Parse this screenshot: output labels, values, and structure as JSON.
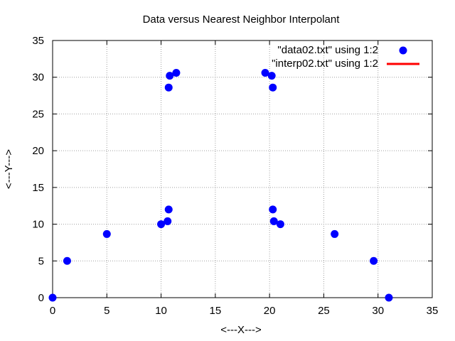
{
  "chart_data": {
    "type": "scatter",
    "title": "Data versus Nearest Neighbor Interpolant",
    "xlabel": "<---X--->",
    "ylabel": "<---Y--->",
    "xlim": [
      0,
      35
    ],
    "ylim": [
      0,
      35
    ],
    "xticks": [
      0,
      5,
      10,
      15,
      20,
      25,
      30,
      35
    ],
    "yticks": [
      0,
      5,
      10,
      15,
      20,
      25,
      30,
      35
    ],
    "grid": true,
    "legend_position": "top-right",
    "series": [
      {
        "name": "\"data02.txt\" using 1:2",
        "style": "points",
        "color": "#0000ff",
        "points": [
          [
            0,
            0
          ],
          [
            1.34,
            5
          ],
          [
            5,
            8.66
          ],
          [
            10,
            10
          ],
          [
            10.6,
            10.4
          ],
          [
            10.7,
            12
          ],
          [
            10.7,
            28.6
          ],
          [
            10.8,
            30.2
          ],
          [
            11.4,
            30.6
          ],
          [
            19.6,
            30.6
          ],
          [
            20.2,
            30.2
          ],
          [
            20.3,
            28.6
          ],
          [
            20.3,
            12
          ],
          [
            20.4,
            10.4
          ],
          [
            21,
            10
          ],
          [
            26,
            8.66
          ],
          [
            29.6,
            5
          ],
          [
            31,
            0
          ]
        ]
      },
      {
        "name": "\"interp02.txt\" using 1:2",
        "style": "line",
        "color": "#ff0000",
        "points": []
      }
    ]
  }
}
